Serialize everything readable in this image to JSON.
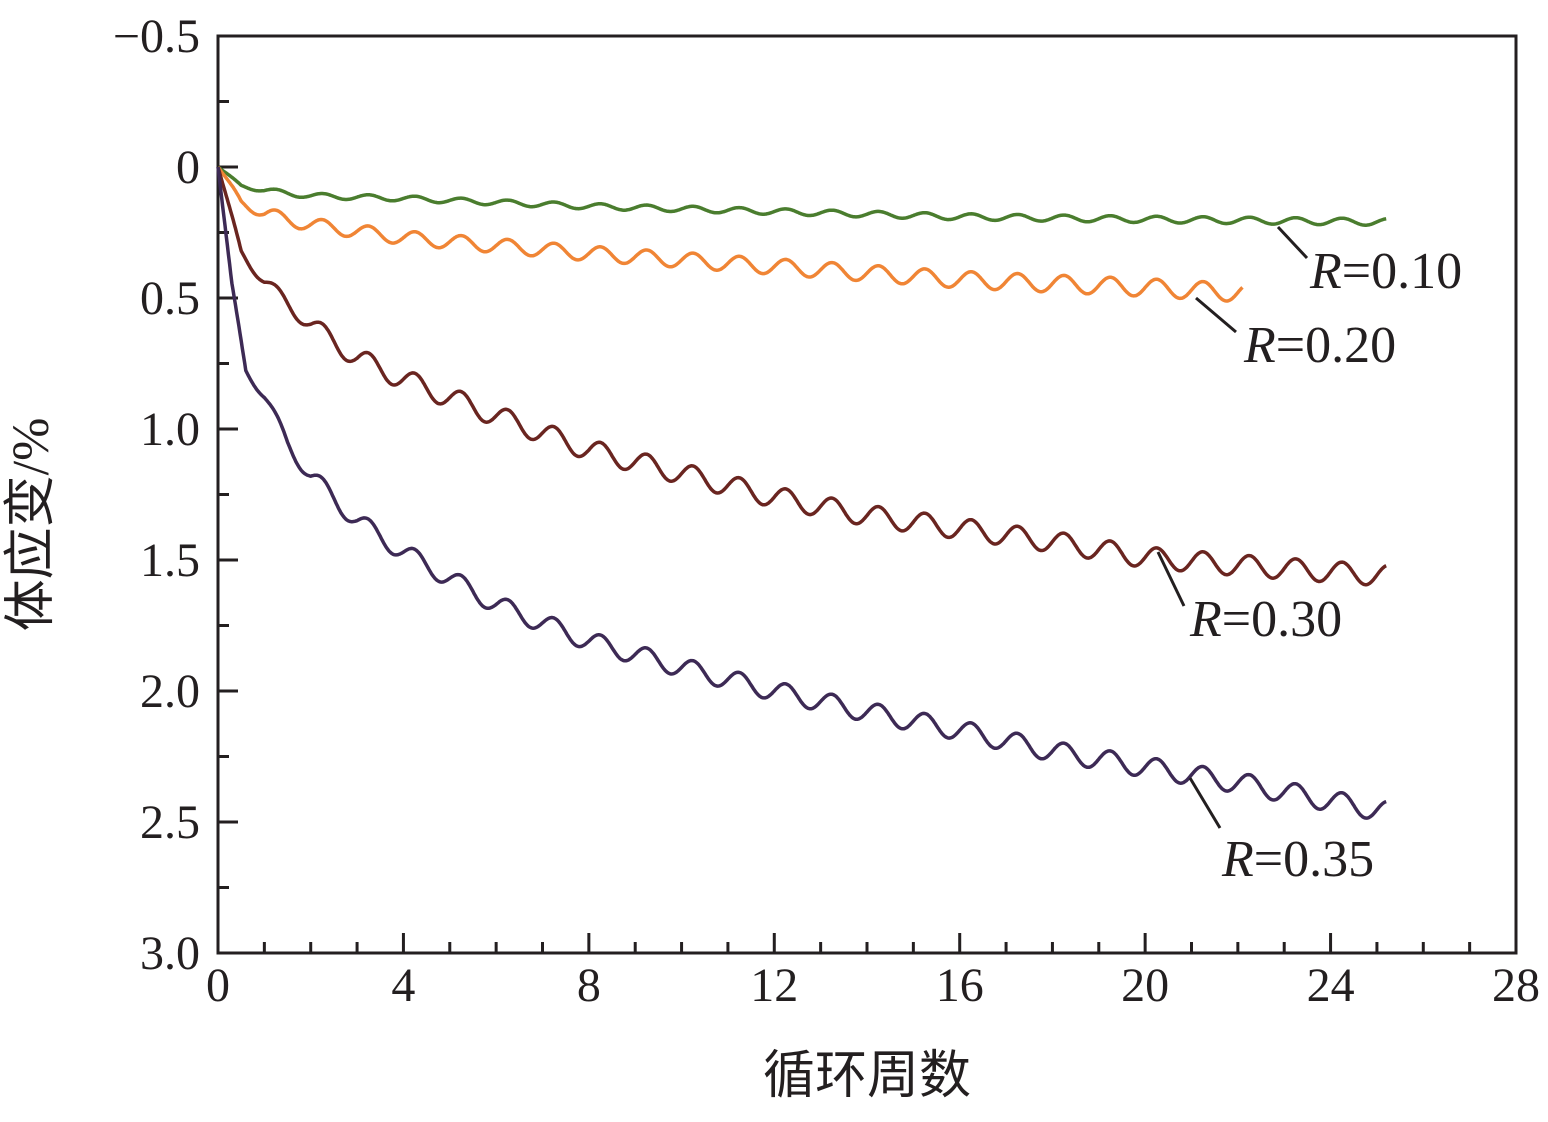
{
  "chart_data": {
    "type": "line",
    "xlabel": "循环周数",
    "ylabel": "体应变/%",
    "xlim": [
      0,
      28
    ],
    "ylim": [
      -0.5,
      3.0
    ],
    "y_inverted": true,
    "grid": false,
    "x_ticks": [
      0,
      4,
      8,
      12,
      16,
      20,
      24,
      28
    ],
    "x_tick_labels": [
      "0",
      "4",
      "8",
      "12",
      "16",
      "20",
      "24",
      "28"
    ],
    "y_ticks": [
      -0.5,
      0,
      0.5,
      1.0,
      1.5,
      2.0,
      2.5,
      3.0
    ],
    "y_tick_labels": [
      "−0.5",
      "0",
      "0.5",
      "1.0",
      "1.5",
      "2.0",
      "2.5",
      "3.0"
    ],
    "series": [
      {
        "name": "R=0.10",
        "label_prefix": "R",
        "label_value": "=0.10",
        "color": "#4a7d2e",
        "end_cycle": 25.2,
        "mean": [
          [
            0,
            0
          ],
          [
            0.5,
            0.07
          ],
          [
            1,
            0.09
          ],
          [
            2,
            0.11
          ],
          [
            4,
            0.12
          ],
          [
            8,
            0.15
          ],
          [
            12,
            0.17
          ],
          [
            16,
            0.19
          ],
          [
            20,
            0.2
          ],
          [
            25.2,
            0.21
          ]
        ],
        "amplitude": [
          [
            0,
            0
          ],
          [
            1,
            0.01
          ],
          [
            25.2,
            0.013
          ]
        ]
      },
      {
        "name": "R=0.20",
        "label_prefix": "R",
        "label_value": "=0.20",
        "color": "#f08535",
        "end_cycle": 22.1,
        "mean": [
          [
            0,
            0
          ],
          [
            0.5,
            0.13
          ],
          [
            1,
            0.18
          ],
          [
            2,
            0.22
          ],
          [
            4,
            0.27
          ],
          [
            8,
            0.33
          ],
          [
            12,
            0.38
          ],
          [
            16,
            0.43
          ],
          [
            20,
            0.46
          ],
          [
            22.1,
            0.48
          ]
        ],
        "amplitude": [
          [
            0,
            0
          ],
          [
            1,
            0.025
          ],
          [
            22.1,
            0.035
          ]
        ]
      },
      {
        "name": "R=0.30",
        "label_prefix": "R",
        "label_value": "=0.30",
        "color": "#6a2520",
        "end_cycle": 25.2,
        "mean": [
          [
            0,
            0
          ],
          [
            0.5,
            0.32
          ],
          [
            1,
            0.44
          ],
          [
            2,
            0.6
          ],
          [
            3,
            0.73
          ],
          [
            4,
            0.81
          ],
          [
            6,
            0.95
          ],
          [
            8,
            1.08
          ],
          [
            10,
            1.17
          ],
          [
            12,
            1.26
          ],
          [
            14,
            1.33
          ],
          [
            16,
            1.38
          ],
          [
            18,
            1.43
          ],
          [
            20,
            1.49
          ],
          [
            22,
            1.52
          ],
          [
            25.2,
            1.56
          ]
        ],
        "amplitude": [
          [
            0,
            0
          ],
          [
            1,
            0.025
          ],
          [
            3,
            0.04
          ],
          [
            25.2,
            0.04
          ]
        ]
      },
      {
        "name": "R=0.35",
        "label_prefix": "R",
        "label_value": "=0.35",
        "color": "#3d2a55",
        "end_cycle": 25.2,
        "mean": [
          [
            0,
            0
          ],
          [
            0.3,
            0.45
          ],
          [
            0.6,
            0.77
          ],
          [
            1,
            0.88
          ],
          [
            1.5,
            1.05
          ],
          [
            2,
            1.18
          ],
          [
            3,
            1.35
          ],
          [
            4,
            1.47
          ],
          [
            6,
            1.67
          ],
          [
            8,
            1.81
          ],
          [
            10,
            1.91
          ],
          [
            12,
            2.0
          ],
          [
            14,
            2.08
          ],
          [
            16,
            2.15
          ],
          [
            18,
            2.23
          ],
          [
            20,
            2.29
          ],
          [
            22,
            2.35
          ],
          [
            24,
            2.42
          ],
          [
            25.2,
            2.46
          ]
        ],
        "amplitude": [
          [
            0,
            0
          ],
          [
            1,
            0.02
          ],
          [
            2,
            0.035
          ],
          [
            25.2,
            0.04
          ]
        ]
      }
    ]
  }
}
